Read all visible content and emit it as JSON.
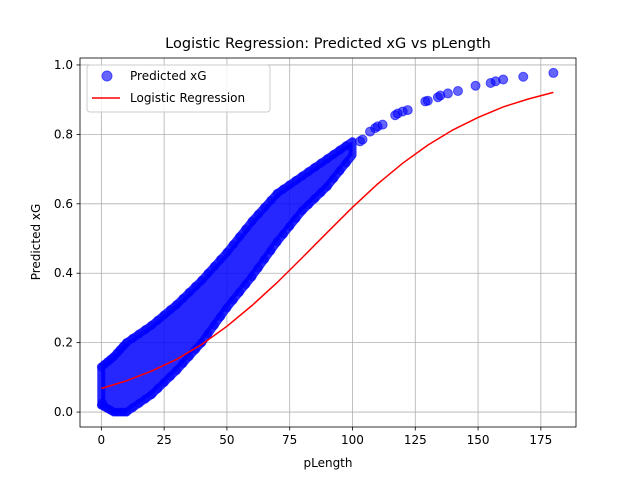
{
  "chart_data": {
    "type": "scatter",
    "title": "Logistic Regression: Predicted xG vs pLength",
    "xlabel": "pLength",
    "ylabel": "Predicted xG",
    "xlim": [
      -8.5,
      189
    ],
    "ylim": [
      -0.043,
      1.02
    ],
    "xticks": [
      0,
      25,
      50,
      75,
      100,
      125,
      150,
      175
    ],
    "yticks": [
      0.0,
      0.2,
      0.4,
      0.6,
      0.8,
      1.0
    ],
    "xtick_labels": [
      "0",
      "25",
      "50",
      "75",
      "100",
      "125",
      "150",
      "175"
    ],
    "ytick_labels": [
      "0.0",
      "0.2",
      "0.4",
      "0.6",
      "0.8",
      "1.0"
    ],
    "grid": true,
    "legend_position": "top-left",
    "series": [
      {
        "name": "Predicted xG",
        "kind": "scatter",
        "color": "#0000ff",
        "band": [
          {
            "x": 0,
            "lo": 0.02,
            "hi": 0.13
          },
          {
            "x": 5,
            "lo": 0.0,
            "hi": 0.16
          },
          {
            "x": 10,
            "lo": 0.0,
            "hi": 0.2
          },
          {
            "x": 20,
            "lo": 0.05,
            "hi": 0.25
          },
          {
            "x": 30,
            "lo": 0.12,
            "hi": 0.31
          },
          {
            "x": 40,
            "lo": 0.2,
            "hi": 0.38
          },
          {
            "x": 50,
            "lo": 0.3,
            "hi": 0.46
          },
          {
            "x": 60,
            "lo": 0.39,
            "hi": 0.55
          },
          {
            "x": 70,
            "lo": 0.49,
            "hi": 0.63
          },
          {
            "x": 80,
            "lo": 0.58,
            "hi": 0.68
          },
          {
            "x": 90,
            "lo": 0.65,
            "hi": 0.73
          },
          {
            "x": 100,
            "lo": 0.74,
            "hi": 0.78
          }
        ],
        "points": [
          {
            "x": 0.5,
            "y": 0.025
          },
          {
            "x": 103,
            "y": 0.78
          },
          {
            "x": 104,
            "y": 0.785
          },
          {
            "x": 107,
            "y": 0.808
          },
          {
            "x": 109,
            "y": 0.818
          },
          {
            "x": 110,
            "y": 0.823
          },
          {
            "x": 112,
            "y": 0.828
          },
          {
            "x": 117,
            "y": 0.855
          },
          {
            "x": 118,
            "y": 0.86
          },
          {
            "x": 120,
            "y": 0.866
          },
          {
            "x": 122,
            "y": 0.87
          },
          {
            "x": 129,
            "y": 0.895
          },
          {
            "x": 130,
            "y": 0.897
          },
          {
            "x": 134,
            "y": 0.907
          },
          {
            "x": 135,
            "y": 0.912
          },
          {
            "x": 138,
            "y": 0.918
          },
          {
            "x": 142,
            "y": 0.925
          },
          {
            "x": 149,
            "y": 0.94
          },
          {
            "x": 155,
            "y": 0.948
          },
          {
            "x": 157,
            "y": 0.953
          },
          {
            "x": 160,
            "y": 0.958
          },
          {
            "x": 168,
            "y": 0.966
          },
          {
            "x": 180,
            "y": 0.977
          }
        ]
      },
      {
        "name": "Logistic Regression",
        "kind": "line",
        "color": "#ff0000",
        "x": [
          0,
          10,
          20,
          30,
          40,
          50,
          60,
          70,
          80,
          90,
          100,
          110,
          120,
          130,
          140,
          150,
          160,
          170,
          180
        ],
        "y": [
          0.068,
          0.09,
          0.118,
          0.152,
          0.195,
          0.247,
          0.307,
          0.373,
          0.445,
          0.518,
          0.59,
          0.657,
          0.717,
          0.769,
          0.813,
          0.849,
          0.879,
          0.902,
          0.921
        ]
      }
    ]
  }
}
